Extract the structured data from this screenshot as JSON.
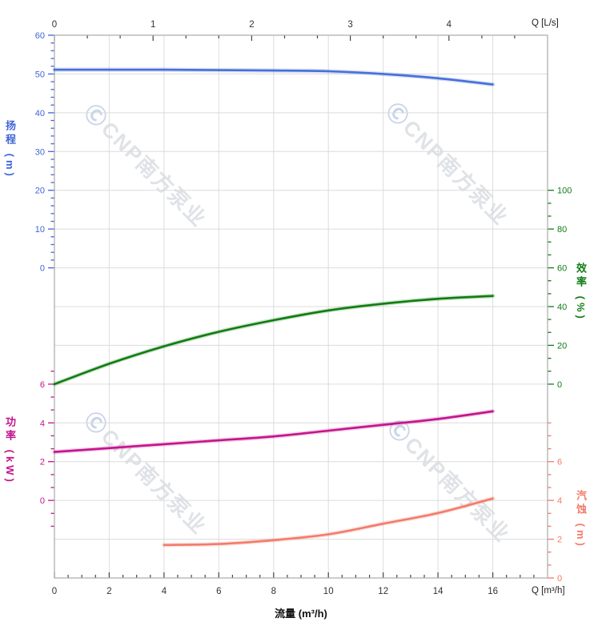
{
  "watermark": {
    "logo_glyph": "Ⓒ",
    "text": "CNP南方泵业"
  },
  "colors": {
    "axis_border": "#a9a9a9",
    "x_tick": "#444444",
    "x_tick_label": "#333333",
    "grid": "#dcdcdc"
  },
  "chart_data": {
    "type": "line",
    "title": "",
    "x_axis_bottom": {
      "title": "流量 (m³/h)",
      "corner_label": "Q [m³/h]",
      "unit": "m³/h",
      "range": [
        0,
        18
      ],
      "major_ticks": [
        0,
        2,
        4,
        6,
        8,
        10,
        12,
        14,
        16
      ],
      "minor_tick_step": 0.5
    },
    "x_axis_top": {
      "corner_label": "Q [L/s]",
      "unit": "L/s",
      "range": [
        0,
        5
      ],
      "major_ticks": [
        0,
        1,
        2,
        3,
        4
      ],
      "minor_divisions_per_major": 3,
      "m3h_per_unit": 3.6
    },
    "y_axes": {
      "head": {
        "title": "扬程 (m)",
        "side": "left",
        "color": "#4066d6",
        "ticks": [
          60,
          50,
          40,
          30,
          20,
          10,
          0
        ],
        "grid_row_of_first_tick": 0,
        "units_per_grid_row": 10,
        "minor_divisions": 5,
        "extra_minors_above": 0,
        "extra_minors_below": 0
      },
      "efficiency": {
        "title": "效率 (%)",
        "side": "right",
        "color": "#107c14",
        "ticks": [
          100,
          80,
          60,
          40,
          20,
          0
        ],
        "grid_row_of_first_tick": 4,
        "units_per_grid_row": 20,
        "minor_divisions": 3,
        "extra_minors_above": 0,
        "extra_minors_below": 0
      },
      "power": {
        "title": "功率 (kW)",
        "side": "left",
        "color": "#c4148c",
        "ticks": [
          6,
          4,
          2,
          0
        ],
        "grid_row_of_first_tick": 9,
        "units_per_grid_row": 2,
        "minor_divisions": 3,
        "extra_minors_above": 1,
        "extra_minors_below": 2
      },
      "npsh": {
        "title": "汽蚀 (m)",
        "side": "right",
        "color": "#f47a6a",
        "ticks": [
          6,
          4,
          2,
          0
        ],
        "grid_row_of_first_tick": 11,
        "units_per_grid_row": 2,
        "minor_divisions": 3,
        "extra_minors_above": 3,
        "extra_minors_below": 0
      }
    },
    "series": [
      {
        "name": "扬程",
        "axis": "head",
        "color": "#4570d8",
        "points_m3h_value": [
          [
            0,
            51.1
          ],
          [
            2,
            51.1
          ],
          [
            4,
            51.1
          ],
          [
            6,
            51.0
          ],
          [
            8,
            50.9
          ],
          [
            10,
            50.7
          ],
          [
            12,
            50.0
          ],
          [
            14,
            48.9
          ],
          [
            16,
            47.3
          ]
        ]
      },
      {
        "name": "效率",
        "axis": "efficiency",
        "color": "#0f7c10",
        "points_m3h_value": [
          [
            0,
            0
          ],
          [
            2,
            10.5
          ],
          [
            4,
            19.5
          ],
          [
            6,
            27
          ],
          [
            8,
            33
          ],
          [
            10,
            38
          ],
          [
            12,
            41.5
          ],
          [
            14,
            44
          ],
          [
            16,
            45.5
          ]
        ]
      },
      {
        "name": "功率",
        "axis": "power",
        "color": "#c4148c",
        "points_m3h_value": [
          [
            0,
            2.5
          ],
          [
            2,
            2.7
          ],
          [
            4,
            2.9
          ],
          [
            6,
            3.1
          ],
          [
            8,
            3.3
          ],
          [
            10,
            3.6
          ],
          [
            12,
            3.9
          ],
          [
            14,
            4.2
          ],
          [
            16,
            4.6
          ]
        ]
      },
      {
        "name": "汽蚀",
        "axis": "npsh",
        "color": "#f47a6a",
        "points_m3h_value": [
          [
            4,
            1.7
          ],
          [
            6,
            1.75
          ],
          [
            8,
            1.95
          ],
          [
            10,
            2.25
          ],
          [
            12,
            2.8
          ],
          [
            14,
            3.35
          ],
          [
            16,
            4.1
          ]
        ]
      }
    ],
    "grid": {
      "visible": true,
      "horizontal_rows": 14,
      "vertical_every_m3h": 2,
      "legend": "none"
    }
  }
}
